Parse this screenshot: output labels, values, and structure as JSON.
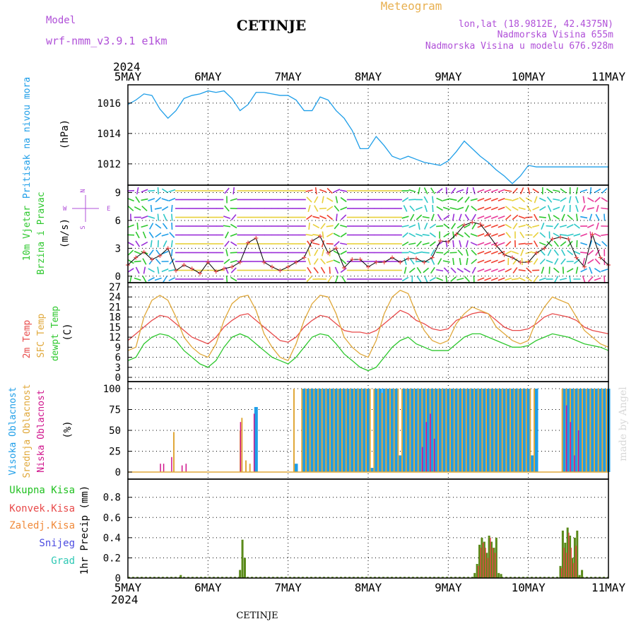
{
  "header": {
    "model_label": "Model",
    "model_name": "wrf-nmm_v3.9.1 e1km",
    "station": "CETINJE",
    "meteogram": "Meteogram",
    "lonlat": "lon,lat (18.9812E, 42.4375N)",
    "elev": "Nadmorska Visina 655m",
    "elev_model": "Nadmorska Visina u modelu 676.928m",
    "footer_station": "CETINJE",
    "credit": "made by Angel"
  },
  "colors": {
    "pressure": "#1e9ee8",
    "t2m": "#e84a4a",
    "sfc": "#e0a83a",
    "dewpt": "#2ec82e",
    "high_cloud": "#1e9ee8",
    "mid_cloud": "#e0a83a",
    "low_cloud": "#d0148c",
    "precip_total": "#1fc01f",
    "precip_conv": "#e84a4a",
    "precip_frozen": "#f08a3a",
    "snow": "#4a4ae0",
    "grad": "#2ec8b4",
    "purple": "#b050d8"
  },
  "chart_data": [
    {
      "type": "line",
      "title": "Pritisak na nivou mora",
      "ylabel": "(hPa)",
      "year": "2024",
      "x_ticks": [
        "5MAY",
        "6MAY",
        "7MAY",
        "8MAY",
        "9MAY",
        "10MAY",
        "11MAY"
      ],
      "yticks": [
        "1012",
        "1014",
        "1016"
      ],
      "ylim": [
        1010.6,
        1017.2
      ],
      "x_days": [
        0,
        0.1,
        0.2,
        0.3,
        0.4,
        0.5,
        0.6,
        0.7,
        0.8,
        0.9,
        1.0,
        1.1,
        1.2,
        1.3,
        1.4,
        1.5,
        1.6,
        1.7,
        1.8,
        1.9,
        2.0,
        2.1,
        2.2,
        2.3,
        2.4,
        2.5,
        2.6,
        2.7,
        2.8,
        2.9,
        3.0,
        3.1,
        3.2,
        3.3,
        3.4,
        3.5,
        3.6,
        3.7,
        3.8,
        3.9,
        4.0,
        4.1,
        4.2,
        4.3,
        4.4,
        4.5,
        4.6,
        4.7,
        4.8,
        4.9,
        5.0,
        5.1,
        5.2,
        5.3,
        5.4,
        5.5,
        5.6,
        5.7,
        5.8,
        5.9,
        6.0
      ],
      "values": [
        1015.9,
        1016.2,
        1016.6,
        1016.5,
        1015.6,
        1015.0,
        1015.5,
        1016.3,
        1016.5,
        1016.6,
        1016.8,
        1016.7,
        1016.8,
        1016.3,
        1015.5,
        1015.9,
        1016.7,
        1016.7,
        1016.6,
        1016.5,
        1016.5,
        1016.2,
        1015.5,
        1015.5,
        1016.4,
        1016.2,
        1015.5,
        1015.0,
        1014.2,
        1013.0,
        1013.0,
        1013.8,
        1013.2,
        1012.5,
        1012.3,
        1012.5,
        1012.3,
        1012.1,
        1012.0,
        1011.9,
        1012.2,
        1012.8,
        1013.5,
        1013.0,
        1012.5,
        1012.1,
        1011.6,
        1011.2,
        1010.7,
        1011.2,
        1011.9,
        1011.8,
        1011.8,
        1011.8,
        1011.8,
        1011.8,
        1011.8,
        1011.8,
        1011.8,
        1011.8,
        1011.8
      ]
    },
    {
      "type": "line",
      "title": "10m Vjetar Brzina i Pravac",
      "ylabel": "(m/s)",
      "compass": {
        "n": "N",
        "w": "W",
        "e": "E",
        "s": "S"
      },
      "yticks": [
        "0",
        "3",
        "6",
        "9"
      ],
      "ylim": [
        -0.7,
        9.8
      ],
      "x_days": [
        0,
        0.1,
        0.2,
        0.3,
        0.4,
        0.5,
        0.6,
        0.7,
        0.8,
        0.9,
        1.0,
        1.1,
        1.2,
        1.3,
        1.4,
        1.5,
        1.6,
        1.7,
        1.8,
        1.9,
        2.0,
        2.1,
        2.2,
        2.3,
        2.4,
        2.5,
        2.6,
        2.7,
        2.8,
        2.9,
        3.0,
        3.1,
        3.2,
        3.3,
        3.4,
        3.5,
        3.6,
        3.7,
        3.8,
        3.9,
        4.0,
        4.1,
        4.2,
        4.3,
        4.4,
        4.5,
        4.6,
        4.7,
        4.8,
        4.9,
        5.0,
        5.1,
        5.2,
        5.3,
        5.4,
        5.5,
        5.6,
        5.7,
        5.8,
        5.9,
        6.0
      ],
      "values": [
        1.2,
        2.0,
        2.6,
        1.8,
        2.2,
        3.0,
        0.6,
        1.2,
        0.8,
        0.3,
        1.5,
        0.5,
        0.8,
        1.0,
        1.5,
        3.6,
        4.1,
        1.5,
        1.0,
        0.6,
        1.0,
        1.5,
        2.0,
        3.8,
        4.3,
        2.5,
        3.0,
        0.9,
        1.8,
        1.8,
        1.0,
        1.5,
        1.5,
        2.0,
        1.5,
        1.9,
        1.9,
        1.5,
        2.0,
        3.8,
        3.7,
        4.5,
        5.5,
        5.8,
        5.6,
        4.5,
        3.3,
        2.3,
        2.0,
        1.5,
        1.5,
        2.5,
        3.0,
        4.0,
        4.2,
        4.0,
        2.0,
        1.0,
        4.5,
        2.0,
        1.2
      ]
    },
    {
      "type": "line",
      "ylabel": "(C)",
      "series_names": [
        "2m Temp",
        "SFC Temp",
        "dewpt Temp"
      ],
      "yticks": [
        "0",
        "3",
        "6",
        "9",
        "12",
        "15",
        "18",
        "21",
        "24",
        "27"
      ],
      "ylim": [
        0,
        27
      ],
      "x_days": [
        0,
        0.1,
        0.2,
        0.3,
        0.4,
        0.5,
        0.6,
        0.7,
        0.8,
        0.9,
        1.0,
        1.1,
        1.2,
        1.3,
        1.4,
        1.5,
        1.6,
        1.7,
        1.8,
        1.9,
        2.0,
        2.1,
        2.2,
        2.3,
        2.4,
        2.5,
        2.6,
        2.7,
        2.8,
        2.9,
        3.0,
        3.1,
        3.2,
        3.3,
        3.4,
        3.5,
        3.6,
        3.7,
        3.8,
        3.9,
        4.0,
        4.1,
        4.2,
        4.3,
        4.4,
        4.5,
        4.6,
        4.7,
        4.8,
        4.9,
        5.0,
        5.1,
        5.2,
        5.3,
        5.4,
        5.5,
        5.6,
        5.7,
        5.8,
        5.9,
        6.0
      ],
      "series": [
        {
          "name": "2m Temp",
          "values": [
            11,
            13,
            15,
            17,
            18.5,
            18,
            16,
            14,
            12,
            11,
            10,
            12,
            15,
            17,
            18.5,
            19,
            17,
            15,
            13,
            11,
            10.5,
            12,
            15,
            17,
            18.5,
            18,
            16,
            14,
            13.5,
            13.5,
            13,
            14,
            16,
            18,
            20,
            19,
            17,
            16,
            14.5,
            14,
            14.5,
            17,
            18,
            19,
            19.5,
            19,
            17,
            15,
            14,
            14,
            14.5,
            16,
            18,
            19,
            18.5,
            18,
            17,
            15,
            14,
            13.5,
            13
          ]
        },
        {
          "name": "SFC Temp",
          "values": [
            8,
            9,
            18,
            23,
            24.5,
            23,
            18,
            12,
            9,
            7,
            6,
            10,
            17,
            22,
            24,
            24.5,
            20,
            13,
            9,
            6,
            5,
            10,
            17,
            22,
            24.5,
            24,
            19,
            12,
            9,
            7,
            6,
            11,
            19,
            24,
            26,
            25,
            19,
            14,
            11,
            10,
            11,
            16,
            19,
            21,
            20,
            19,
            15,
            13,
            11,
            10,
            11,
            17,
            21,
            24,
            23,
            22,
            18,
            14,
            12,
            10,
            9
          ]
        },
        {
          "name": "dewpt Temp",
          "values": [
            5,
            6,
            10,
            12,
            13,
            12.5,
            11,
            8,
            6,
            4,
            3,
            5,
            9,
            12,
            13,
            12,
            10,
            8,
            6,
            5,
            4,
            6,
            9,
            12,
            13,
            12.5,
            10,
            7,
            5,
            3,
            2,
            3,
            6,
            9,
            11,
            12,
            10,
            9,
            8,
            8,
            8,
            10,
            12,
            13,
            13,
            12,
            11,
            10,
            9,
            9,
            9.5,
            11,
            12,
            13,
            12.5,
            12,
            11,
            10,
            9.5,
            9,
            8
          ]
        }
      ]
    },
    {
      "type": "bar",
      "ylabel": "(%)",
      "series_names": [
        "Visoka Oblacnost",
        "Srednja Oblacnost",
        "Niska Oblacnost"
      ],
      "yticks": [
        "0",
        "25",
        "50",
        "75",
        "100"
      ],
      "ylim": [
        0,
        100
      ],
      "x_days": [
        0.38,
        0.42,
        0.52,
        0.6,
        0.65,
        0.7,
        1.38,
        1.43,
        1.45,
        1.5,
        1.55,
        1.6,
        2.1,
        2.2,
        2.25,
        2.3,
        2.35,
        2.4,
        2.45,
        2.5,
        2.55,
        2.6,
        2.65,
        2.7,
        2.75,
        2.8,
        2.85,
        2.9,
        2.95,
        3.0,
        3.05,
        3.1,
        3.15,
        3.2,
        3.25,
        3.3,
        3.35,
        3.4,
        3.45,
        3.5,
        3.55,
        3.6,
        3.65,
        3.7,
        3.75,
        3.8,
        3.85,
        3.9,
        3.95,
        4.0,
        4.05,
        4.1,
        4.15,
        4.2,
        4.25,
        4.3,
        4.35,
        4.4,
        4.45,
        4.5,
        4.55,
        4.6,
        4.65,
        4.7,
        4.75,
        4.8,
        4.85,
        4.9,
        4.95,
        5.0,
        5.05,
        5.1,
        5.15,
        5.2,
        5.25,
        5.3,
        5.35,
        5.4,
        5.45,
        5.5,
        5.55,
        5.6,
        5.65,
        5.7,
        5.75,
        5.8,
        5.85,
        5.9,
        5.95,
        6.0
      ],
      "series": [
        {
          "name": "Visoka Oblacnost",
          "values": [
            0,
            0,
            0,
            0,
            0,
            0,
            0,
            0,
            0,
            0,
            0,
            78,
            10,
            100,
            100,
            100,
            100,
            100,
            100,
            100,
            100,
            100,
            100,
            100,
            100,
            100,
            100,
            100,
            100,
            100,
            5,
            100,
            100,
            100,
            100,
            100,
            100,
            20,
            100,
            100,
            100,
            100,
            100,
            100,
            100,
            100,
            100,
            100,
            100,
            100,
            100,
            100,
            100,
            100,
            100,
            100,
            100,
            100,
            100,
            100,
            100,
            100,
            100,
            100,
            100,
            100,
            100,
            100,
            100,
            100,
            20,
            100,
            0,
            0,
            0,
            0,
            0,
            0,
            100,
            100,
            100,
            100,
            100,
            100,
            100,
            100,
            100,
            100,
            100,
            100
          ]
        },
        {
          "name": "Srednja Oblacnost",
          "values": [
            0,
            0,
            0,
            48,
            0,
            0,
            0,
            50,
            65,
            14,
            10,
            0,
            100,
            100,
            100,
            100,
            100,
            100,
            100,
            100,
            100,
            100,
            100,
            100,
            100,
            100,
            100,
            100,
            100,
            100,
            100,
            100,
            100,
            95,
            100,
            100,
            100,
            100,
            100,
            100,
            100,
            100,
            100,
            100,
            100,
            100,
            100,
            100,
            100,
            100,
            100,
            100,
            100,
            100,
            100,
            100,
            100,
            100,
            100,
            100,
            100,
            100,
            100,
            100,
            100,
            100,
            100,
            100,
            100,
            100,
            100,
            100,
            0,
            0,
            0,
            0,
            0,
            0,
            100,
            100,
            100,
            100,
            100,
            100,
            100,
            100,
            100,
            100,
            100,
            100
          ]
        },
        {
          "name": "Niska Oblacnost",
          "values": [
            10,
            10,
            18,
            0,
            8,
            10,
            60,
            0,
            0,
            0,
            70,
            0,
            0,
            0,
            0,
            0,
            0,
            0,
            0,
            0,
            0,
            0,
            0,
            0,
            0,
            0,
            0,
            0,
            0,
            0,
            0,
            0,
            0,
            0,
            0,
            0,
            0,
            0,
            0,
            0,
            0,
            0,
            30,
            60,
            70,
            40,
            0,
            0,
            0,
            0,
            0,
            0,
            0,
            0,
            0,
            0,
            0,
            0,
            0,
            0,
            0,
            0,
            0,
            0,
            0,
            0,
            0,
            0,
            0,
            0,
            0,
            0,
            0,
            0,
            0,
            0,
            0,
            0,
            80,
            60,
            20,
            50,
            0,
            0,
            0,
            0,
            0,
            0,
            0,
            0
          ]
        }
      ]
    },
    {
      "type": "bar",
      "ylabel": "1hr Precip (mm)",
      "legend": [
        "Ukupna Kisa",
        "Konvek.Kisa",
        "Zaledj.Kisa",
        "Snijeg",
        "Grad"
      ],
      "yticks": [
        "0",
        "0.2",
        "0.4",
        "0.6",
        "0.8"
      ],
      "ylim": [
        0,
        0.98
      ],
      "x_days": [
        0.66,
        1.4,
        1.43,
        1.46,
        1.49,
        4.33,
        4.36,
        4.39,
        4.42,
        4.45,
        4.48,
        4.51,
        4.54,
        4.57,
        4.6,
        4.63,
        4.66,
        4.69,
        5.4,
        5.43,
        5.46,
        5.49,
        5.52,
        5.55,
        5.58,
        5.61,
        5.64,
        5.67
      ],
      "series": [
        {
          "name": "Ukupna Kisa",
          "values": [
            0.03,
            0.08,
            0.38,
            0.2,
            0.0,
            0.05,
            0.14,
            0.33,
            0.4,
            0.36,
            0.25,
            0.42,
            0.36,
            0.3,
            0.4,
            0.05,
            0.04,
            0.0,
            0.12,
            0.47,
            0.35,
            0.5,
            0.42,
            0.2,
            0.4,
            0.47,
            0.03,
            0.08
          ]
        },
        {
          "name": "Konvek.Kisa",
          "values": [
            0.0,
            0.0,
            0.0,
            0.0,
            0.0,
            0.0,
            0.12,
            0.3,
            0.35,
            0.3,
            0.2,
            0.4,
            0.3,
            0.25,
            0.0,
            0.0,
            0.0,
            0.0,
            0.1,
            0.3,
            0.25,
            0.45,
            0.3,
            0.15,
            0.32,
            0.0,
            0.0,
            0.0
          ]
        }
      ]
    }
  ]
}
